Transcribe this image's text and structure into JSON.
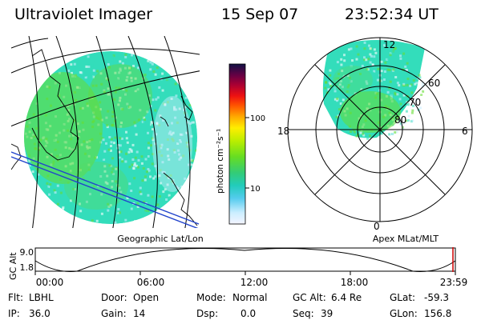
{
  "header": {
    "title": "Ultraviolet Imager",
    "date": "15 Sep 07",
    "time": "23:52:34 UT"
  },
  "colorbar": {
    "unit_label": "photon cm⁻²s⁻¹",
    "ticks": [
      "100",
      "10"
    ],
    "scale": "log"
  },
  "geo_panel": {
    "label": "Geographic Lat/Lon"
  },
  "polar_panel": {
    "label": "Apex MLat/MLT",
    "mlt_labels": {
      "top": "12",
      "left": "18",
      "right": "6",
      "bottom": "0"
    },
    "lat_labels": [
      "60",
      "70",
      "80"
    ]
  },
  "timeline": {
    "ylabel": "GC Alt",
    "ytick_top": "9.0",
    "ytick_bottom": "1.8",
    "xticks": [
      "00:00",
      "06:00",
      "12:00",
      "18:00",
      "23:59"
    ]
  },
  "info": {
    "filter_label": "Flt:",
    "filter_value": "LBHL",
    "ip_label": "IP:",
    "ip_value": "36.0",
    "door_label": "Door:",
    "door_value": "Open",
    "gain_label": "Gain:",
    "gain_value": "14",
    "mode_label": "Mode:",
    "mode_value": "Normal",
    "dsp_label": "Dsp:",
    "dsp_value": "0.0",
    "gcalt_label": "GC Alt:",
    "gcalt_value": "6.4 Re",
    "seq_label": "Seq:",
    "seq_value": "39",
    "glat_label": "GLat:",
    "glat_value": "-59.3",
    "glon_label": "GLon:",
    "glon_value": "156.8"
  },
  "colors": {
    "emission_base": "#33ddbb",
    "emission_bright": "#66dd33",
    "emission_faint": "#cceeff",
    "orbit_track": "#2244cc"
  }
}
